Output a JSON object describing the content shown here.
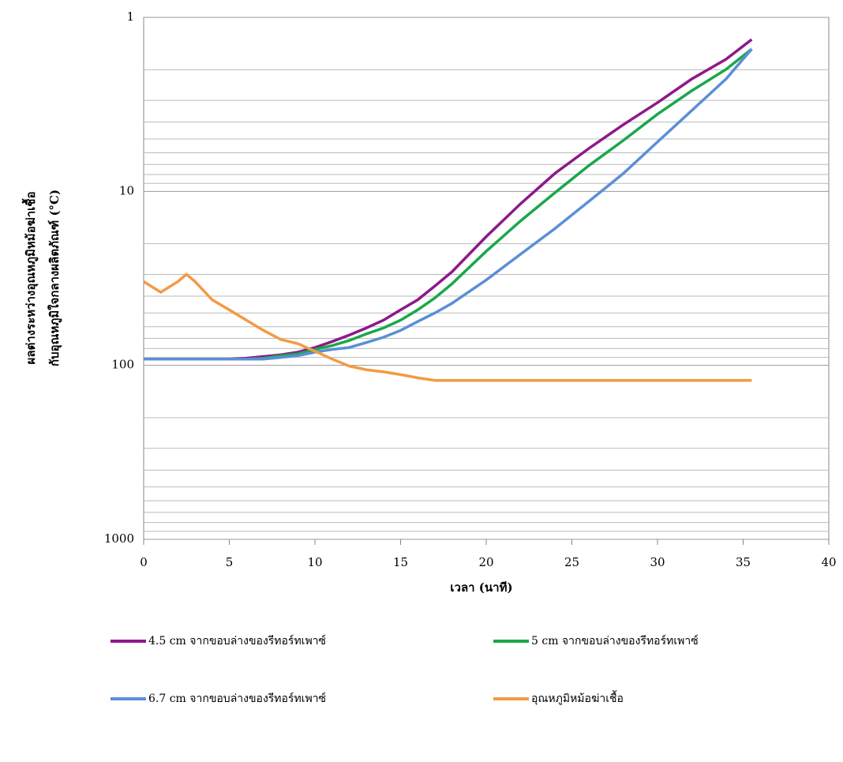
{
  "chart_data": {
    "type": "line",
    "y_label": [
      "ผลต่างระหว่างอุณหภูมิหม้อฆ่าเชื้อ",
      "กับอุณหภูมิใจกลางผลิตภัณฑ์   (°C)"
    ],
    "x_label": "เวลา (นาที)",
    "x": [
      0,
      1,
      2,
      2.5,
      3,
      4,
      5,
      6,
      7,
      8,
      9,
      10,
      11,
      12,
      13,
      14,
      15,
      16,
      17,
      18,
      20,
      22,
      24,
      26,
      28,
      30,
      32,
      34,
      35.5
    ],
    "series": [
      {
        "name": "4.5 cm จากขอบล่างของรีทอร์ทเพาซ์",
        "color": "#8b1a8b",
        "values": [
          92,
          92,
          92,
          92,
          92,
          92,
          92,
          91,
          89,
          87,
          84,
          79,
          73,
          67,
          61,
          55,
          48,
          42,
          35,
          29,
          18.2,
          11.8,
          7.9,
          5.66,
          4.14,
          3.09,
          2.26,
          1.74,
          1.34
        ]
      },
      {
        "name": "5 cm จากขอบล่างของรีทอร์ทเพาซ์",
        "color": "#1aa84a",
        "values": [
          92,
          92,
          92,
          92,
          92,
          92,
          92,
          92,
          91,
          88,
          86,
          81,
          77,
          72,
          66,
          61,
          55,
          48,
          41,
          34,
          22.1,
          14.8,
          10.2,
          7.1,
          5.1,
          3.6,
          2.64,
          1.99,
          1.52
        ]
      },
      {
        "name": "6.7 cm จากขอบล่างของรีทอร์ทเพาซ์",
        "color": "#5b8fd6",
        "values": [
          92,
          92,
          92,
          92,
          92,
          92,
          92,
          92,
          92,
          90,
          88,
          84,
          81,
          79,
          74,
          69,
          63,
          56,
          50,
          44,
          32.3,
          23,
          16.4,
          11.4,
          7.9,
          5.2,
          3.43,
          2.26,
          1.52
        ]
      },
      {
        "name": "อุณหภูมิหม้อฆ่าเชื้อ",
        "color": "#f39a45",
        "values": [
          33,
          38,
          33,
          30,
          33,
          42,
          48,
          55,
          63,
          71,
          75,
          83,
          92,
          101,
          106,
          109,
          113,
          118,
          122,
          122,
          122,
          122,
          122,
          122,
          122,
          122,
          122,
          122,
          122
        ]
      }
    ],
    "xlim": [
      0,
      40
    ],
    "xticks": [
      0,
      5,
      10,
      15,
      20,
      25,
      30,
      35,
      40
    ],
    "ylim": [
      1,
      1000
    ],
    "yticks": [
      1,
      10,
      100,
      1000
    ],
    "y_log": true,
    "y_inverted": true,
    "grid": true
  }
}
